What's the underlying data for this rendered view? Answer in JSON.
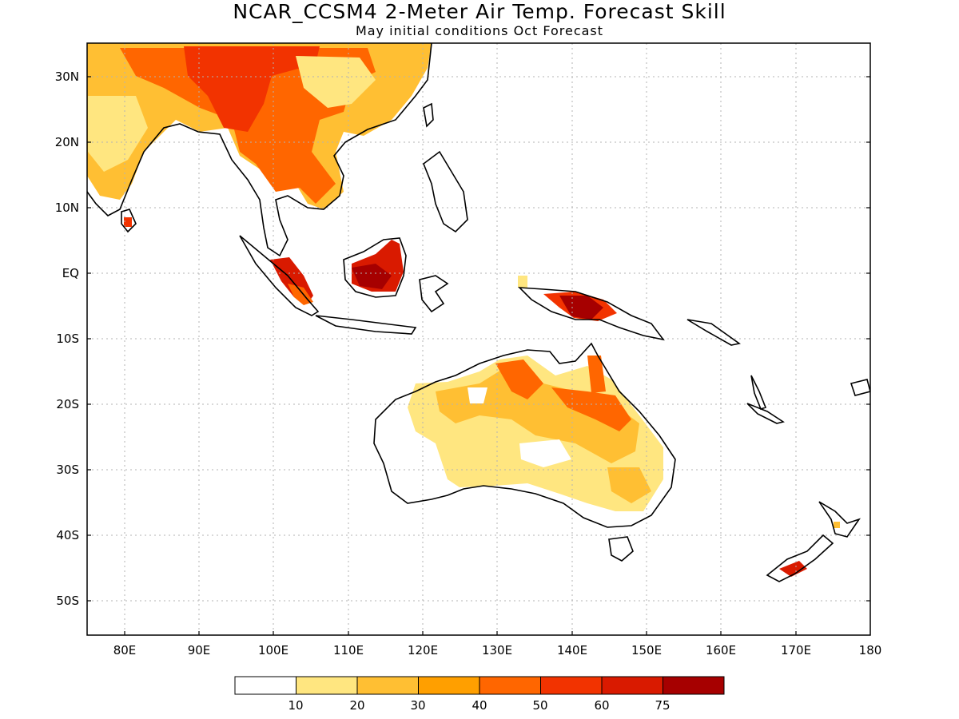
{
  "title": "NCAR_CCSM4 2-Meter Air Temp. Forecast Skill",
  "subtitle": "May initial conditions  Oct Forecast",
  "lat_ticks": [
    "30N",
    "20N",
    "10N",
    "EQ",
    "10S",
    "20S",
    "30S",
    "40S",
    "50S"
  ],
  "lon_ticks": [
    "80E",
    "90E",
    "100E",
    "110E",
    "120E",
    "130E",
    "140E",
    "150E",
    "160E",
    "170E",
    "180"
  ],
  "map_extent": {
    "lon_min": 75,
    "lon_max": 180,
    "lat_min": -55,
    "lat_max": 35
  },
  "legend": {
    "colors": [
      "#ffffff",
      "#ffe680",
      "#ffbf33",
      "#ff9f00",
      "#ff6600",
      "#f23300",
      "#d91a00",
      "#a60000"
    ],
    "labels": [
      "10",
      "20",
      "30",
      "40",
      "50",
      "60",
      "75"
    ]
  },
  "icons": [
    "grid-lines",
    "coastline",
    "shaded-skill-regions"
  ]
}
